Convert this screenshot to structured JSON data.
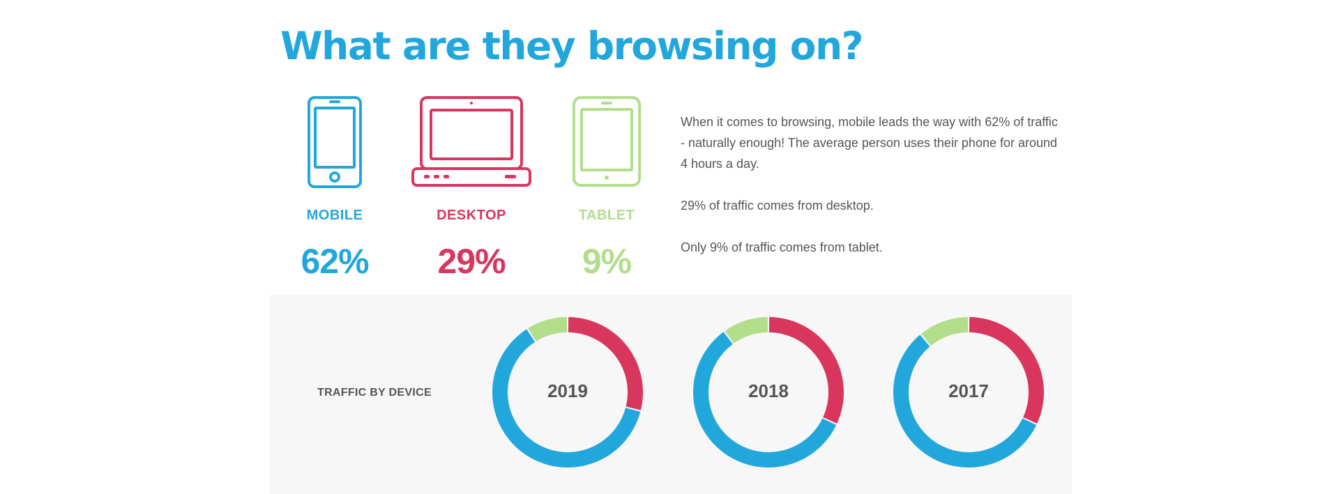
{
  "title": "What are they browsing on?",
  "colors": {
    "mobile": "#22a7dc",
    "desktop": "#d9365e",
    "tablet": "#b2de8c",
    "text": "#555555",
    "panel": "#f7f7f7"
  },
  "devices": [
    {
      "label": "MOBILE",
      "pct": "62%",
      "icon": "smartphone-icon"
    },
    {
      "label": "DESKTOP",
      "pct": "29%",
      "icon": "laptop-icon"
    },
    {
      "label": "TABLET",
      "pct": "9%",
      "icon": "tablet-icon"
    }
  ],
  "description": [
    "When it comes to browsing, mobile leads the way with 62% of traffic - naturally enough! The average person uses their phone for around 4 hours a day.",
    "29% of traffic comes from desktop.",
    "Only 9% of traffic comes from tablet."
  ],
  "chart_data": {
    "type": "pie",
    "title": "TRAFFIC BY DEVICE",
    "donuts": [
      {
        "label": "2019",
        "segments": [
          {
            "name": "Desktop",
            "value": 29
          },
          {
            "name": "Mobile",
            "value": 62
          },
          {
            "name": "Tablet",
            "value": 9
          }
        ]
      },
      {
        "label": "2018",
        "segments": [
          {
            "name": "Desktop",
            "value": 32
          },
          {
            "name": "Mobile",
            "value": 58
          },
          {
            "name": "Tablet",
            "value": 10
          }
        ]
      },
      {
        "label": "2017",
        "segments": [
          {
            "name": "Desktop",
            "value": 32
          },
          {
            "name": "Mobile",
            "value": 57
          },
          {
            "name": "Tablet",
            "value": 11
          }
        ]
      }
    ]
  }
}
